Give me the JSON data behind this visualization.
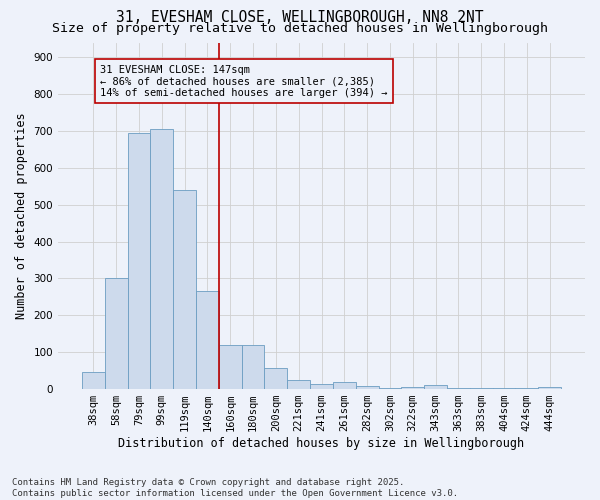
{
  "title_line1": "31, EVESHAM CLOSE, WELLINGBOROUGH, NN8 2NT",
  "title_line2": "Size of property relative to detached houses in Wellingborough",
  "xlabel": "Distribution of detached houses by size in Wellingborough",
  "ylabel": "Number of detached properties",
  "categories": [
    "38sqm",
    "58sqm",
    "79sqm",
    "99sqm",
    "119sqm",
    "140sqm",
    "160sqm",
    "180sqm",
    "200sqm",
    "221sqm",
    "241sqm",
    "261sqm",
    "282sqm",
    "302sqm",
    "322sqm",
    "343sqm",
    "363sqm",
    "383sqm",
    "404sqm",
    "424sqm",
    "444sqm"
  ],
  "values": [
    45,
    300,
    695,
    705,
    540,
    265,
    120,
    120,
    58,
    25,
    15,
    18,
    8,
    2,
    5,
    10,
    3,
    2,
    2,
    3,
    5
  ],
  "bar_color": "#cddaec",
  "bar_edge_color": "#6b9dc2",
  "background_color": "#eef2fa",
  "grid_color": "#d0d0d0",
  "vline_x": 5.5,
  "vline_color": "#bb0000",
  "annotation_line1": "31 EVESHAM CLOSE: 147sqm",
  "annotation_line2": "← 86% of detached houses are smaller (2,385)",
  "annotation_line3": "14% of semi-detached houses are larger (394) →",
  "annotation_box_color": "#bb0000",
  "ylim": [
    0,
    940
  ],
  "yticks": [
    0,
    100,
    200,
    300,
    400,
    500,
    600,
    700,
    800,
    900
  ],
  "footer": "Contains HM Land Registry data © Crown copyright and database right 2025.\nContains public sector information licensed under the Open Government Licence v3.0.",
  "title_fontsize": 10.5,
  "subtitle_fontsize": 9.5,
  "axis_label_fontsize": 8.5,
  "tick_fontsize": 7.5,
  "annotation_fontsize": 7.5,
  "footer_fontsize": 6.5
}
